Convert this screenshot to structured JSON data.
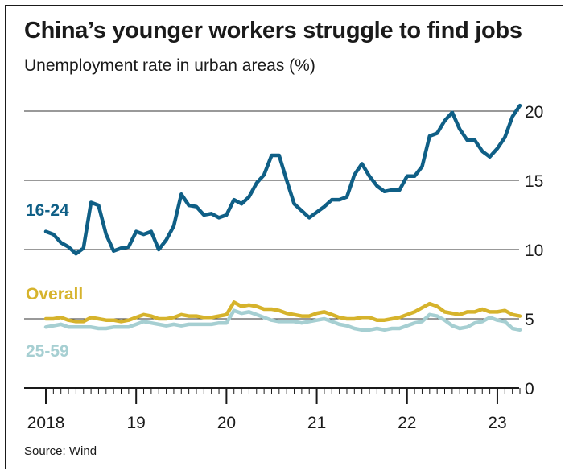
{
  "title": "China’s younger workers struggle to find jobs",
  "subtitle": "Unemployment rate in urban areas (%)",
  "source": "Source: Wind",
  "chart_data": {
    "type": "line",
    "x_start": "2018-01",
    "x_end": "2023-04",
    "ylim": [
      0,
      20
    ],
    "yticks": [
      "0",
      "5",
      "10",
      "15",
      "20"
    ],
    "xticks": [
      "2018",
      "19",
      "20",
      "21",
      "22",
      "23"
    ],
    "grid": "horizontal",
    "series": [
      {
        "name": "16-24",
        "color": "#0f5f86",
        "months": [
          "2018-01",
          "2018-02",
          "2018-03",
          "2018-04",
          "2018-05",
          "2018-06",
          "2018-07",
          "2018-08",
          "2018-09",
          "2018-10",
          "2018-11",
          "2018-12",
          "2019-01",
          "2019-02",
          "2019-03",
          "2019-04",
          "2019-05",
          "2019-06",
          "2019-07",
          "2019-08",
          "2019-09",
          "2019-10",
          "2019-11",
          "2019-12",
          "2020-01",
          "2020-02",
          "2020-03",
          "2020-04",
          "2020-05",
          "2020-06",
          "2020-07",
          "2020-08",
          "2020-09",
          "2020-10",
          "2020-11",
          "2020-12",
          "2021-01",
          "2021-02",
          "2021-03",
          "2021-04",
          "2021-05",
          "2021-06",
          "2021-07",
          "2021-08",
          "2021-09",
          "2021-10",
          "2021-11",
          "2021-12",
          "2022-01",
          "2022-02",
          "2022-03",
          "2022-04",
          "2022-05",
          "2022-06",
          "2022-07",
          "2022-08",
          "2022-09",
          "2022-10",
          "2022-11",
          "2022-12",
          "2023-01",
          "2023-02",
          "2023-03",
          "2023-04"
        ],
        "values": [
          11.3,
          11.1,
          10.5,
          10.2,
          9.7,
          10.1,
          13.4,
          13.2,
          11.1,
          9.9,
          10.1,
          10.2,
          11.3,
          11.1,
          11.3,
          10.0,
          10.7,
          11.7,
          14.0,
          13.2,
          13.1,
          12.5,
          12.6,
          12.3,
          12.5,
          13.6,
          13.3,
          13.8,
          14.8,
          15.4,
          16.8,
          16.8,
          15.0,
          13.3,
          12.8,
          12.3,
          12.7,
          13.1,
          13.6,
          13.6,
          13.8,
          15.4,
          16.2,
          15.3,
          14.6,
          14.2,
          14.3,
          14.3,
          15.3,
          15.3,
          16.0,
          18.2,
          18.4,
          19.3,
          19.9,
          18.7,
          17.9,
          17.9,
          17.1,
          16.7,
          17.3,
          18.1,
          19.6,
          20.4
        ]
      },
      {
        "name": "Overall",
        "color": "#d6b32c",
        "months": [
          "2018-01",
          "2018-02",
          "2018-03",
          "2018-04",
          "2018-05",
          "2018-06",
          "2018-07",
          "2018-08",
          "2018-09",
          "2018-10",
          "2018-11",
          "2018-12",
          "2019-01",
          "2019-02",
          "2019-03",
          "2019-04",
          "2019-05",
          "2019-06",
          "2019-07",
          "2019-08",
          "2019-09",
          "2019-10",
          "2019-11",
          "2019-12",
          "2020-01",
          "2020-02",
          "2020-03",
          "2020-04",
          "2020-05",
          "2020-06",
          "2020-07",
          "2020-08",
          "2020-09",
          "2020-10",
          "2020-11",
          "2020-12",
          "2021-01",
          "2021-02",
          "2021-03",
          "2021-04",
          "2021-05",
          "2021-06",
          "2021-07",
          "2021-08",
          "2021-09",
          "2021-10",
          "2021-11",
          "2021-12",
          "2022-01",
          "2022-02",
          "2022-03",
          "2022-04",
          "2022-05",
          "2022-06",
          "2022-07",
          "2022-08",
          "2022-09",
          "2022-10",
          "2022-11",
          "2022-12",
          "2023-01",
          "2023-02",
          "2023-03",
          "2023-04"
        ],
        "values": [
          5.0,
          5.0,
          5.1,
          4.9,
          4.8,
          4.8,
          5.1,
          5.0,
          4.9,
          4.9,
          4.8,
          4.9,
          5.1,
          5.3,
          5.2,
          5.0,
          5.0,
          5.1,
          5.3,
          5.2,
          5.2,
          5.1,
          5.1,
          5.2,
          5.3,
          6.2,
          5.9,
          6.0,
          5.9,
          5.7,
          5.7,
          5.6,
          5.4,
          5.3,
          5.2,
          5.2,
          5.4,
          5.5,
          5.3,
          5.1,
          5.0,
          5.0,
          5.1,
          5.1,
          4.9,
          4.9,
          5.0,
          5.1,
          5.3,
          5.5,
          5.8,
          6.1,
          5.9,
          5.5,
          5.4,
          5.3,
          5.5,
          5.5,
          5.7,
          5.5,
          5.5,
          5.6,
          5.3,
          5.2
        ]
      },
      {
        "name": "25-59",
        "color": "#a6cfd2",
        "months": [
          "2018-01",
          "2018-02",
          "2018-03",
          "2018-04",
          "2018-05",
          "2018-06",
          "2018-07",
          "2018-08",
          "2018-09",
          "2018-10",
          "2018-11",
          "2018-12",
          "2019-01",
          "2019-02",
          "2019-03",
          "2019-04",
          "2019-05",
          "2019-06",
          "2019-07",
          "2019-08",
          "2019-09",
          "2019-10",
          "2019-11",
          "2019-12",
          "2020-01",
          "2020-02",
          "2020-03",
          "2020-04",
          "2020-05",
          "2020-06",
          "2020-07",
          "2020-08",
          "2020-09",
          "2020-10",
          "2020-11",
          "2020-12",
          "2021-01",
          "2021-02",
          "2021-03",
          "2021-04",
          "2021-05",
          "2021-06",
          "2021-07",
          "2021-08",
          "2021-09",
          "2021-10",
          "2021-11",
          "2021-12",
          "2022-01",
          "2022-02",
          "2022-03",
          "2022-04",
          "2022-05",
          "2022-06",
          "2022-07",
          "2022-08",
          "2022-09",
          "2022-10",
          "2022-11",
          "2022-12",
          "2023-01",
          "2023-02",
          "2023-03",
          "2023-04"
        ],
        "values": [
          4.4,
          4.5,
          4.6,
          4.4,
          4.4,
          4.4,
          4.4,
          4.3,
          4.3,
          4.4,
          4.4,
          4.4,
          4.6,
          4.8,
          4.7,
          4.6,
          4.5,
          4.6,
          4.5,
          4.6,
          4.6,
          4.6,
          4.6,
          4.7,
          4.7,
          5.6,
          5.4,
          5.5,
          5.3,
          5.1,
          4.9,
          4.8,
          4.8,
          4.8,
          4.7,
          4.8,
          4.9,
          5.0,
          4.8,
          4.6,
          4.5,
          4.3,
          4.2,
          4.2,
          4.3,
          4.2,
          4.3,
          4.3,
          4.5,
          4.7,
          4.8,
          5.3,
          5.2,
          4.9,
          4.5,
          4.3,
          4.4,
          4.7,
          4.8,
          5.1,
          4.9,
          4.8,
          4.3,
          4.2
        ]
      }
    ]
  }
}
